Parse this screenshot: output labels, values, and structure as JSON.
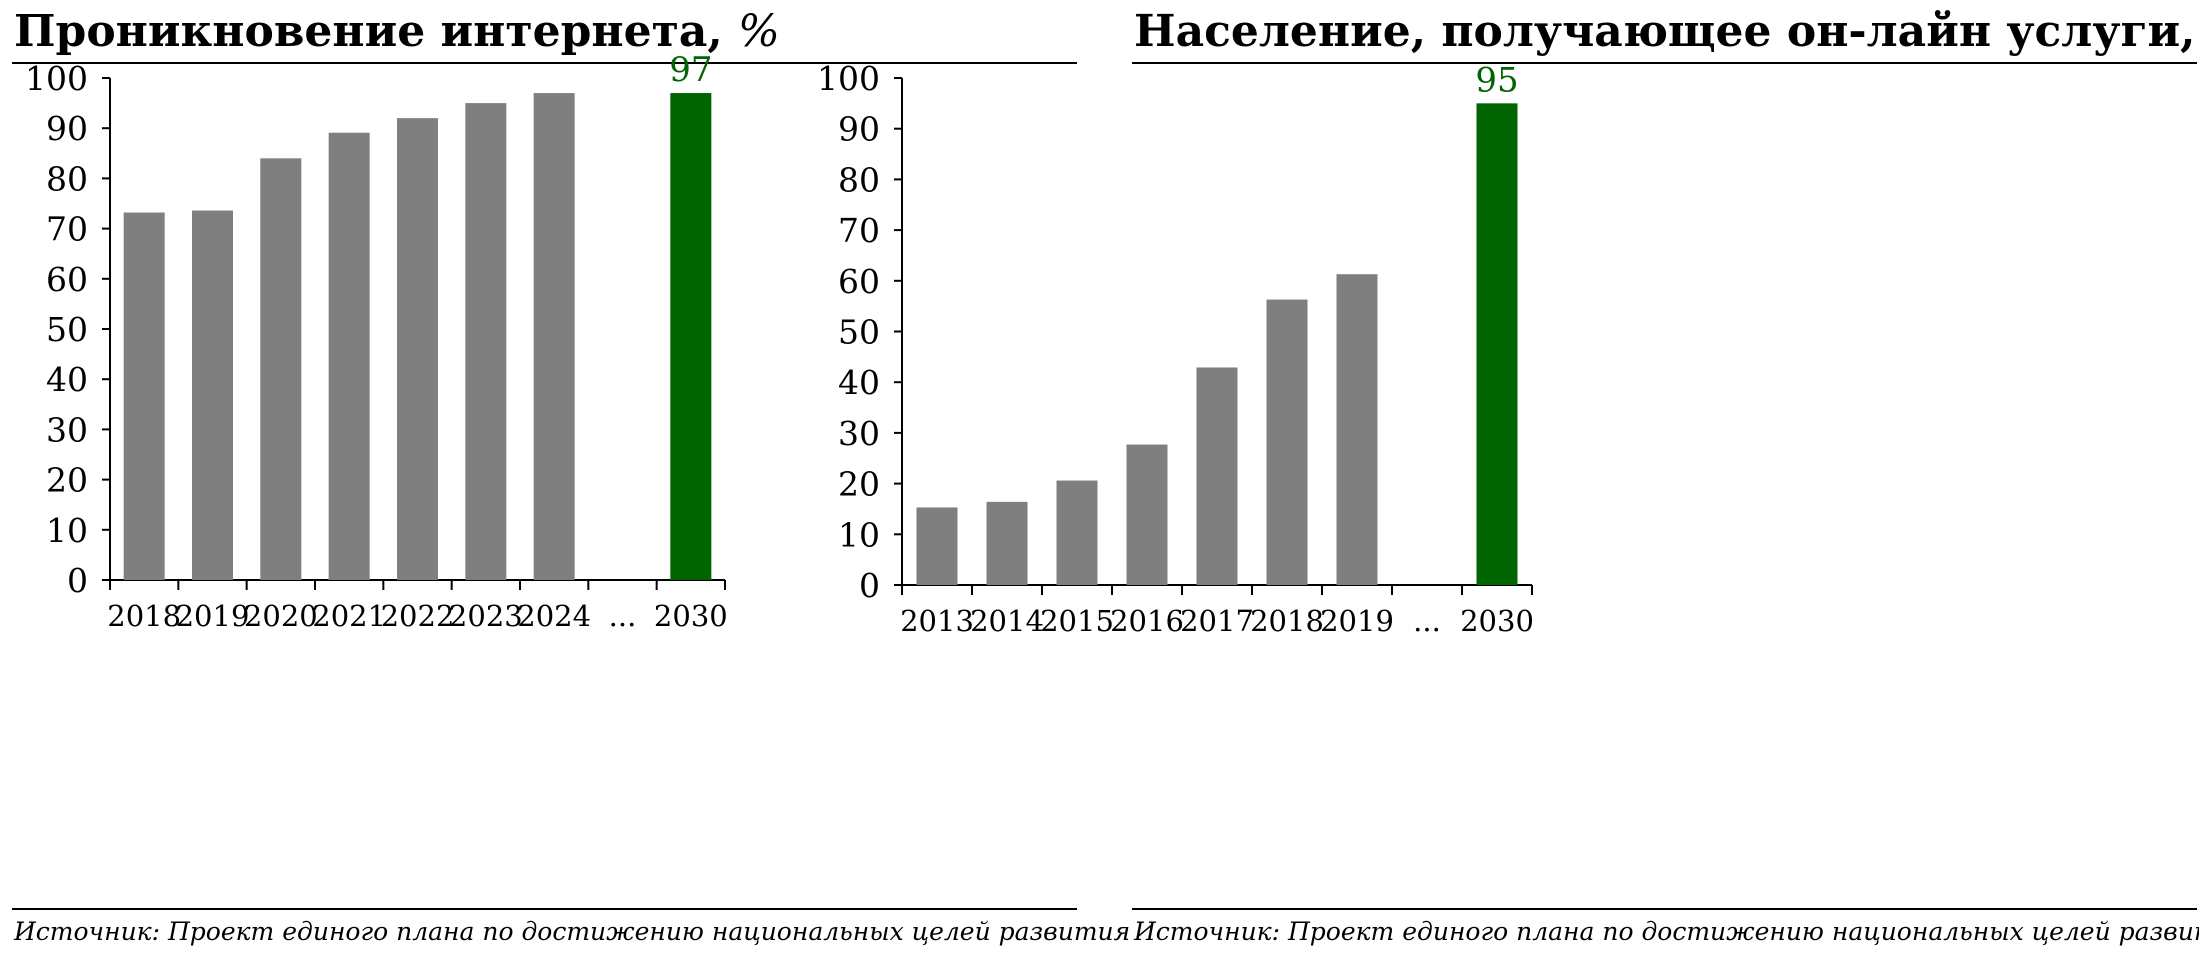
{
  "colors": {
    "bar": "#7f7f7f",
    "highlight_bar": "#006400",
    "highlight_label": "#006400",
    "axis": "#000000"
  },
  "chart_data": [
    {
      "type": "bar",
      "title": "Проникновение интернета,",
      "title_unit": "%",
      "source": "Источник: Проект единого плана по достижению национальных целей развития",
      "categories": [
        "2018",
        "2019",
        "2020",
        "2021",
        "2022",
        "2023",
        "2024",
        "...",
        "2030"
      ],
      "values": [
        73.2,
        73.6,
        84,
        89.1,
        92,
        95,
        97,
        null,
        97
      ],
      "highlight_index": 8,
      "highlight_label": "97",
      "yticks": [
        "0",
        "10",
        "20",
        "30",
        "40",
        "50",
        "60",
        "70",
        "80",
        "90",
        "100"
      ],
      "ylim": [
        0,
        100
      ],
      "grid": false,
      "legend": "none"
    },
    {
      "type": "bar",
      "title": "Население, получающее он-лайн услуги,",
      "title_unit": "%",
      "source": "Источник: Проект единого плана по достижению национальных целей развития",
      "categories": [
        "2013",
        "2014",
        "2015",
        "2016",
        "2017",
        "2018",
        "2019",
        "...",
        "2030"
      ],
      "values": [
        15.3,
        16.4,
        20.6,
        27.7,
        42.9,
        56.3,
        61.3,
        null,
        95
      ],
      "highlight_index": 8,
      "highlight_label": "95",
      "yticks": [
        "0",
        "10",
        "20",
        "30",
        "40",
        "50",
        "60",
        "70",
        "80",
        "90",
        "100"
      ],
      "ylim": [
        0,
        100
      ],
      "grid": false,
      "legend": "none"
    }
  ]
}
